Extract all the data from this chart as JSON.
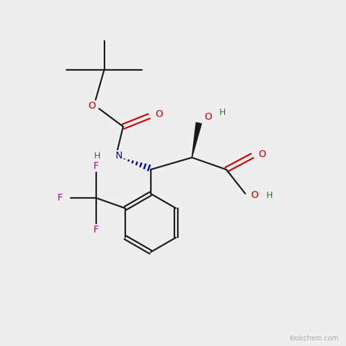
{
  "bg_color": "#eeeeee",
  "bond_color": "#1a1a1a",
  "red_color": "#cc0000",
  "blue_color": "#0000cc",
  "purple_color": "#aa00aa",
  "green_color": "#336633",
  "watermark": "lookchem.com",
  "figsize": [
    5.0,
    5.0
  ],
  "dpi": 100,
  "xlim": [
    0,
    10
  ],
  "ylim": [
    0,
    10
  ]
}
